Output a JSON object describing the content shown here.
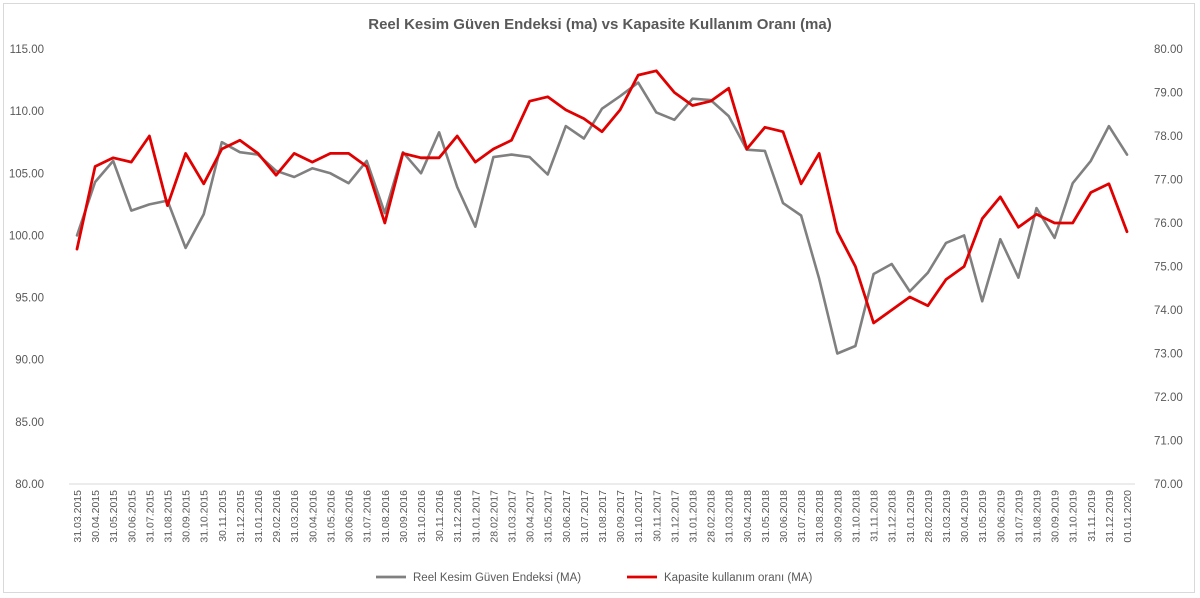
{
  "chart_data": {
    "type": "line",
    "title": "Reel Kesim Güven Endeksi (ma) vs  Kapasite Kullanım Oranı (ma)",
    "x": [
      "31.03.2015",
      "30.04.2015",
      "31.05.2015",
      "30.06.2015",
      "31.07.2015",
      "31.08.2015",
      "30.09.2015",
      "31.10.2015",
      "30.11.2015",
      "31.12.2015",
      "31.01.2016",
      "29.02.2016",
      "31.03.2016",
      "30.04.2016",
      "31.05.2016",
      "30.06.2016",
      "31.07.2016",
      "31.08.2016",
      "30.09.2016",
      "31.10.2016",
      "30.11.2016",
      "31.12.2016",
      "31.01.2017",
      "28.02.2017",
      "31.03.2017",
      "30.04.2017",
      "31.05.2017",
      "30.06.2017",
      "31.07.2017",
      "31.08.2017",
      "30.09.2017",
      "31.10.2017",
      "30.11.2017",
      "31.12.2017",
      "31.01.2018",
      "28.02.2018",
      "31.03.2018",
      "30.04.2018",
      "31.05.2018",
      "30.06.2018",
      "31.07.2018",
      "31.08.2018",
      "30.09.2018",
      "31.10.2018",
      "31.11.2018",
      "31.12.2018",
      "31.01.2019",
      "28.02.2019",
      "31.03.2019",
      "30.04.2019",
      "31.05.2019",
      "30.06.2019",
      "31.07.2019",
      "31.08.2019",
      "30.09.2019",
      "31.10.2019",
      "31.11.2019",
      "31.12.2019",
      "01.01.2020"
    ],
    "series": [
      {
        "name": "Reel Kesim Güven Endeksi (MA)",
        "axis": "left",
        "color": "#808080",
        "values": [
          100.0,
          104.3,
          106.0,
          102.0,
          102.5,
          102.8,
          99.0,
          101.7,
          107.5,
          106.7,
          106.5,
          105.2,
          104.7,
          105.4,
          105.0,
          104.2,
          106.0,
          101.8,
          106.7,
          105.0,
          108.3,
          103.9,
          100.7,
          106.3,
          106.5,
          106.3,
          104.9,
          108.8,
          107.8,
          110.2,
          111.2,
          112.3,
          109.9,
          109.3,
          111.0,
          110.9,
          109.6,
          106.9,
          106.8,
          102.6,
          101.6,
          96.5,
          90.5,
          91.1,
          96.9,
          97.7,
          95.5,
          97.0,
          99.4,
          100.0,
          94.7,
          99.7,
          96.6,
          102.2,
          99.8,
          104.2,
          106.0,
          108.8,
          106.5
        ]
      },
      {
        "name": "Kapasite kullanım oranı (MA)",
        "axis": "right",
        "color": "#e00000",
        "values": [
          75.4,
          77.3,
          77.5,
          77.4,
          78.0,
          76.4,
          77.6,
          76.9,
          77.7,
          77.9,
          77.6,
          77.1,
          77.6,
          77.4,
          77.6,
          77.6,
          77.3,
          76.0,
          77.6,
          77.5,
          77.5,
          78.0,
          77.4,
          77.7,
          77.9,
          78.8,
          78.9,
          78.6,
          78.4,
          78.1,
          78.6,
          79.4,
          79.5,
          79.0,
          78.7,
          78.8,
          79.1,
          77.7,
          78.2,
          78.1,
          76.9,
          77.6,
          75.8,
          75.0,
          73.7,
          74.0,
          74.3,
          74.1,
          74.7,
          75.0,
          76.1,
          76.6,
          75.9,
          76.2,
          76.0,
          76.0,
          76.7,
          76.9,
          75.8
        ]
      }
    ],
    "y_left": {
      "min": 80,
      "max": 115,
      "step": 5,
      "tick_labels": [
        "80.00",
        "85.00",
        "90.00",
        "95.00",
        "100.00",
        "105.00",
        "110.00",
        "115.00"
      ]
    },
    "y_right": {
      "min": 70,
      "max": 80,
      "step": 1,
      "tick_labels": [
        "70.00",
        "71.00",
        "72.00",
        "73.00",
        "74.00",
        "75.00",
        "76.00",
        "77.00",
        "78.00",
        "79.00",
        "80.00"
      ]
    },
    "grid": false,
    "legend_position": "bottom"
  }
}
